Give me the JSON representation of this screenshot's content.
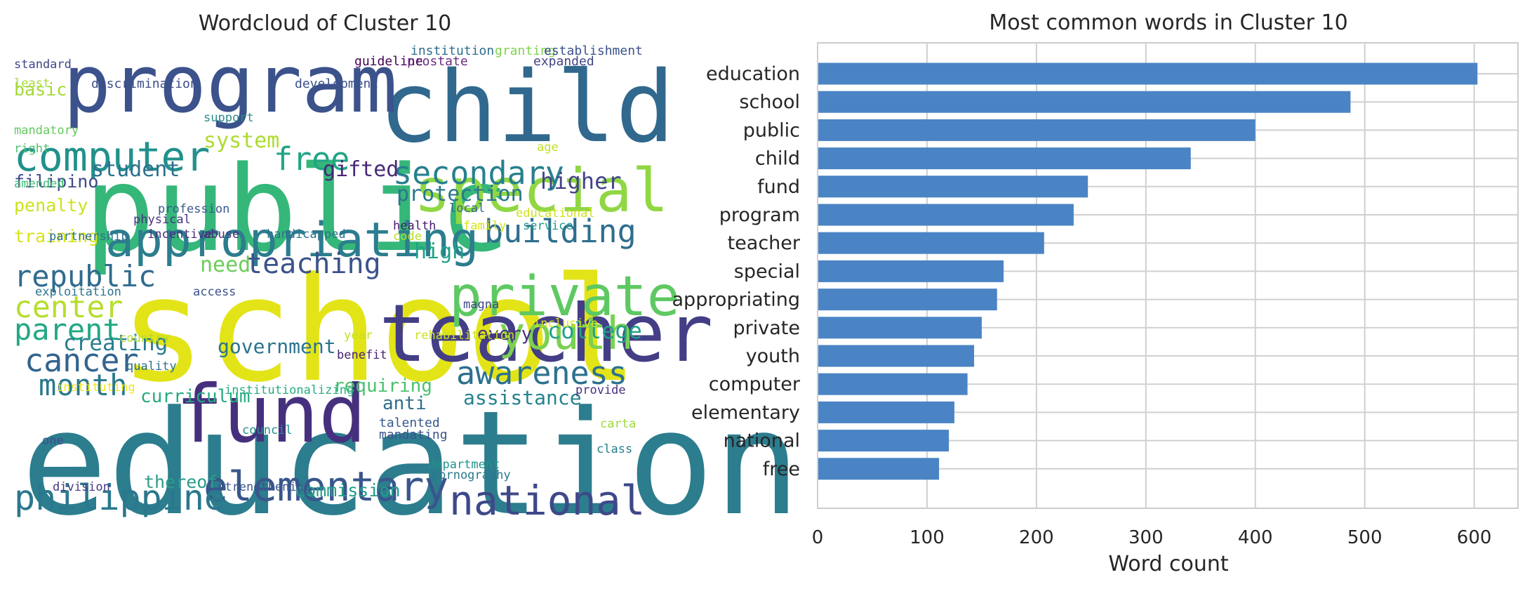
{
  "wordcloud": {
    "title": "Wordcloud of Cluster 10",
    "words": [
      {
        "text": "education",
        "color": "#2c7d8e"
      },
      {
        "text": "school",
        "color": "#e3e418"
      },
      {
        "text": "public",
        "color": "#35b779"
      },
      {
        "text": "child",
        "color": "#31688e"
      },
      {
        "text": "program",
        "color": "#3b528b"
      },
      {
        "text": "fund",
        "color": "#46307e"
      },
      {
        "text": "teacher",
        "color": "#433e85"
      },
      {
        "text": "special",
        "color": "#90d743"
      },
      {
        "text": "private",
        "color": "#5ec962"
      },
      {
        "text": "appropriating",
        "color": "#2c7d8e"
      },
      {
        "text": "youth",
        "color": "#7ad151"
      },
      {
        "text": "computer",
        "color": "#21918c"
      },
      {
        "text": "national",
        "color": "#3e4989"
      },
      {
        "text": "elementary",
        "color": "#39568c"
      },
      {
        "text": "philippine",
        "color": "#2a788e"
      },
      {
        "text": "awareness",
        "color": "#2d718e"
      },
      {
        "text": "secondary",
        "color": "#27808e"
      },
      {
        "text": "building",
        "color": "#2e6e8e"
      },
      {
        "text": "cancer",
        "color": "#32648e"
      },
      {
        "text": "free",
        "color": "#21a585"
      },
      {
        "text": "republic",
        "color": "#2f6b8e"
      },
      {
        "text": "center",
        "color": "#b5de2b"
      },
      {
        "text": "parent",
        "color": "#22a884"
      },
      {
        "text": "month",
        "color": "#2a788e"
      },
      {
        "text": "teaching",
        "color": "#3b528b"
      },
      {
        "text": "college",
        "color": "#1fa088"
      },
      {
        "text": "creating",
        "color": "#287c8e"
      },
      {
        "text": "system",
        "color": "#addc30"
      },
      {
        "text": "protection",
        "color": "#2a768e"
      },
      {
        "text": "higher",
        "color": "#414487"
      },
      {
        "text": "gifted",
        "color": "#482878"
      },
      {
        "text": "student",
        "color": "#2c718e"
      },
      {
        "text": "high",
        "color": "#1fa188"
      },
      {
        "text": "need",
        "color": "#6ccd5a"
      },
      {
        "text": "government",
        "color": "#2b748e"
      },
      {
        "text": "assistance",
        "color": "#26828e"
      },
      {
        "text": "every",
        "color": "#46307e"
      },
      {
        "text": "requiring",
        "color": "#4ac16d"
      },
      {
        "text": "curriculum",
        "color": "#25ab82"
      },
      {
        "text": "anti",
        "color": "#2e6e8e"
      },
      {
        "text": "thereof",
        "color": "#2a9d8b"
      },
      {
        "text": "commission",
        "color": "#1f9e89"
      },
      {
        "text": "filipino",
        "color": "#3e4a89"
      },
      {
        "text": "penalty",
        "color": "#cde11d"
      },
      {
        "text": "training",
        "color": "#d8e219"
      },
      {
        "text": "basic",
        "color": "#a2da37"
      },
      {
        "text": "talented",
        "color": "#38588c"
      },
      {
        "text": "mandating",
        "color": "#3a548c"
      },
      {
        "text": "institution",
        "color": "#2e6f8e"
      },
      {
        "text": "granting",
        "color": "#7fd34e"
      },
      {
        "text": "establishment",
        "color": "#3b528b"
      },
      {
        "text": "guideline",
        "color": "#440154"
      },
      {
        "text": "prostate",
        "color": "#6a2c81"
      },
      {
        "text": "expanded",
        "color": "#414487"
      },
      {
        "text": "standard",
        "color": "#3f4788"
      },
      {
        "text": "discrimination",
        "color": "#3d4e8a"
      },
      {
        "text": "development",
        "color": "#3b518b"
      },
      {
        "text": "least",
        "color": "#a5db36"
      },
      {
        "text": "mandatory",
        "color": "#62cb5f"
      },
      {
        "text": "support",
        "color": "#2e8a8c"
      },
      {
        "text": "right",
        "color": "#4cc26c"
      },
      {
        "text": "age",
        "color": "#c2df23"
      },
      {
        "text": "amended",
        "color": "#3fbc73"
      },
      {
        "text": "profession",
        "color": "#38598c"
      },
      {
        "text": "physical",
        "color": "#46327e"
      },
      {
        "text": "local",
        "color": "#30678d"
      },
      {
        "text": "health",
        "color": "#481a6c"
      },
      {
        "text": "family",
        "color": "#d5e21a"
      },
      {
        "text": "educational",
        "color": "#d0e11c"
      },
      {
        "text": "service",
        "color": "#1e9b8a"
      },
      {
        "text": "partnership",
        "color": "#2d708e"
      },
      {
        "text": "incentive",
        "color": "#472d7b"
      },
      {
        "text": "abuse",
        "color": "#472c7a"
      },
      {
        "text": "handicapped",
        "color": "#2c728e"
      },
      {
        "text": "code",
        "color": "#b8de29"
      },
      {
        "text": "exploitation",
        "color": "#2b748e"
      },
      {
        "text": "access",
        "color": "#3b528b"
      },
      {
        "text": "magna",
        "color": "#3f4788"
      },
      {
        "text": "year",
        "color": "#c8e020"
      },
      {
        "text": "rehabilitation",
        "color": "#cae11f"
      },
      {
        "text": "inclusive",
        "color": "#dde318"
      },
      {
        "text": "country",
        "color": "#b0dd2f"
      },
      {
        "text": "benefit",
        "color": "#481f71"
      },
      {
        "text": "quality",
        "color": "#2d718e"
      },
      {
        "text": "instituting",
        "color": "#f1e51d"
      },
      {
        "text": "institutionalizing",
        "color": "#26ad81"
      },
      {
        "text": "provide",
        "color": "#472f7d"
      },
      {
        "text": "council",
        "color": "#21908d"
      },
      {
        "text": "carta",
        "color": "#9dd93b"
      },
      {
        "text": "one",
        "color": "#3e4c8a"
      },
      {
        "text": "class",
        "color": "#27808e"
      },
      {
        "text": "department",
        "color": "#1f948c"
      },
      {
        "text": "pornography",
        "color": "#2a788e"
      },
      {
        "text": "division",
        "color": "#443a83"
      },
      {
        "text": "strengthening",
        "color": "#39568c"
      }
    ]
  },
  "chart_data": {
    "type": "bar",
    "orientation": "horizontal",
    "title": "Most common words in Cluster 10",
    "xlabel": "Word count",
    "ylabel": "",
    "xlim": [
      0,
      640
    ],
    "xticks": [
      0,
      100,
      200,
      300,
      400,
      500,
      600
    ],
    "categories": [
      "education",
      "school",
      "public",
      "child",
      "fund",
      "program",
      "teacher",
      "special",
      "appropriating",
      "private",
      "youth",
      "computer",
      "elementary",
      "national",
      "free"
    ],
    "values": [
      603,
      487,
      400,
      341,
      247,
      234,
      207,
      170,
      164,
      150,
      143,
      137,
      125,
      120,
      111
    ],
    "bar_color": "#4a84c4",
    "grid": true,
    "legend": "none"
  }
}
